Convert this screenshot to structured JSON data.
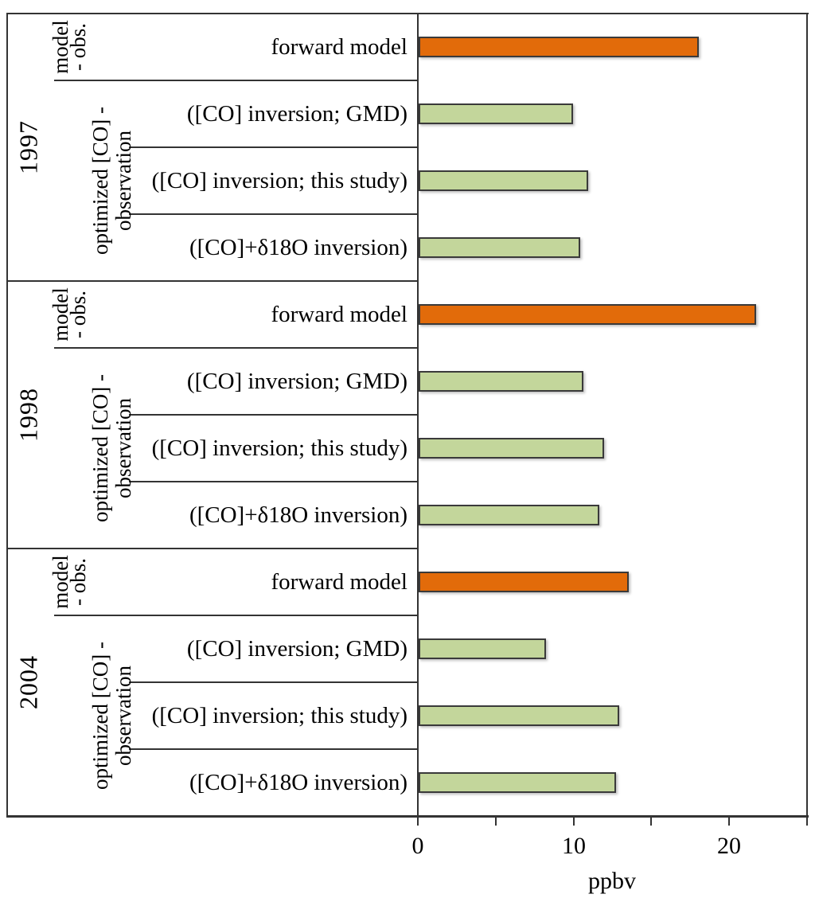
{
  "chart_data": {
    "type": "bar",
    "orientation": "horizontal",
    "title": "",
    "xlabel": "ppbv",
    "xlim": [
      0,
      25
    ],
    "xticks": [
      0,
      5,
      10,
      15,
      20,
      25
    ],
    "xtick_labeled": [
      0,
      10,
      20
    ],
    "grid": false,
    "legend": false,
    "row_categories": [
      "forward model",
      "([CO] inversion; GMD)",
      "([CO] inversion; this study)",
      "([CO]+δ18O inversion)"
    ],
    "section_labels": {
      "model_obs": [
        "model",
        "- obs."
      ],
      "optimized": [
        "optimized [CO] -",
        "observation"
      ]
    },
    "groups": [
      {
        "year": "1997",
        "values": [
          18.0,
          9.9,
          10.9,
          10.4
        ]
      },
      {
        "year": "1998",
        "values": [
          21.7,
          10.6,
          11.9,
          11.6
        ]
      },
      {
        "year": "2004",
        "values": [
          13.5,
          8.2,
          12.9,
          12.7
        ]
      }
    ],
    "colors": {
      "forward_model": "#E26B0A",
      "inversion": "#C3D69B",
      "bar_border": "#3A3A3A",
      "line": "#333333"
    }
  }
}
